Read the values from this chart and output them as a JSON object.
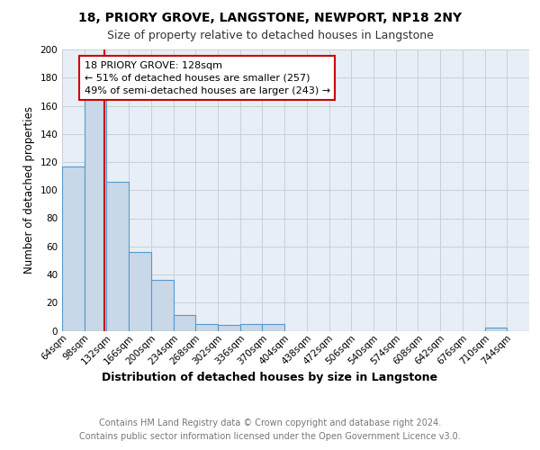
{
  "title1": "18, PRIORY GROVE, LANGSTONE, NEWPORT, NP18 2NY",
  "title2": "Size of property relative to detached houses in Langstone",
  "xlabel": "Distribution of detached houses by size in Langstone",
  "ylabel": "Number of detached properties",
  "bin_labels": [
    "64sqm",
    "98sqm",
    "132sqm",
    "166sqm",
    "200sqm",
    "234sqm",
    "268sqm",
    "302sqm",
    "336sqm",
    "370sqm",
    "404sqm",
    "438sqm",
    "472sqm",
    "506sqm",
    "540sqm",
    "574sqm",
    "608sqm",
    "642sqm",
    "676sqm",
    "710sqm",
    "744sqm"
  ],
  "bin_edges": [
    64,
    98,
    132,
    166,
    200,
    234,
    268,
    302,
    336,
    370,
    404,
    438,
    472,
    506,
    540,
    574,
    608,
    642,
    676,
    710,
    744,
    778
  ],
  "bar_heights": [
    117,
    165,
    106,
    56,
    36,
    11,
    5,
    4,
    5,
    5,
    0,
    0,
    0,
    0,
    0,
    0,
    0,
    0,
    0,
    2,
    0
  ],
  "bar_color": "#c8d8e8",
  "bar_edge_color": "#5599cc",
  "bar_edge_width": 0.8,
  "property_size": 128,
  "red_line_color": "#cc0000",
  "annotation_line1": "18 PRIORY GROVE: 128sqm",
  "annotation_line2": "← 51% of detached houses are smaller (257)",
  "annotation_line3": "49% of semi-detached houses are larger (243) →",
  "annotation_box_color": "#ffffff",
  "annotation_box_edge_color": "#cc0000",
  "ylim": [
    0,
    200
  ],
  "yticks": [
    0,
    20,
    40,
    60,
    80,
    100,
    120,
    140,
    160,
    180,
    200
  ],
  "grid_color": "#c8d0dc",
  "background_color": "#e8eef5",
  "footer_text": "Contains HM Land Registry data © Crown copyright and database right 2024.\nContains public sector information licensed under the Open Government Licence v3.0.",
  "title1_fontsize": 10,
  "title2_fontsize": 9,
  "xlabel_fontsize": 9,
  "ylabel_fontsize": 8.5,
  "tick_fontsize": 7.5,
  "annotation_fontsize": 8,
  "footer_fontsize": 7
}
